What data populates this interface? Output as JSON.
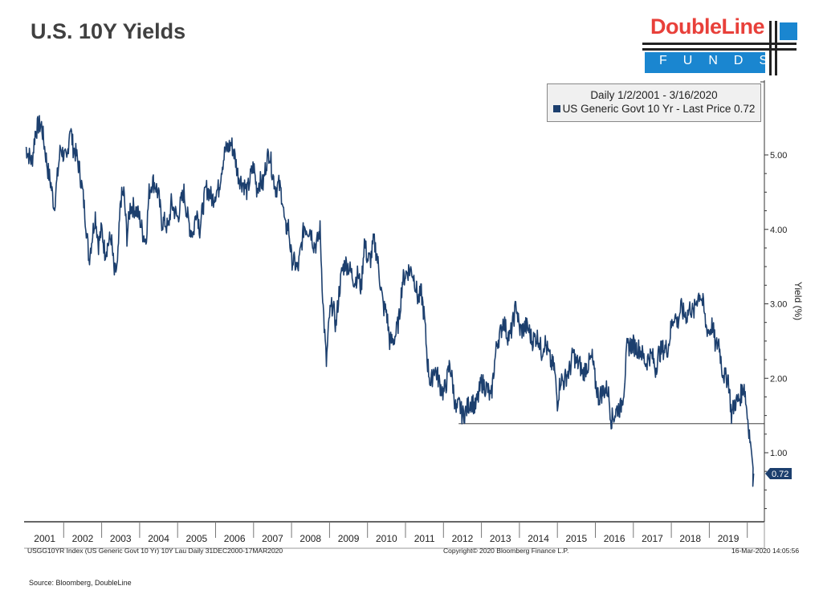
{
  "header": {
    "title": "U.S. 10Y Yields",
    "logo_text": "DoubleLine",
    "logo_sub": "FUNDS"
  },
  "legend": {
    "line1": "Daily 1/2/2001 - 3/16/2020",
    "line2": "US Generic Govt 10 Yr - Last Price 0.72"
  },
  "footer": {
    "left": "USGG10YR Index (US Generic Govt 10 Yr) 10Y Lau  Daily 31DEC2000-17MAR2020",
    "center": "Copyright© 2020 Bloomberg Finance L.P.",
    "right": "16-Mar-2020 14:05:56",
    "source": "Source: Bloomberg, DoubleLine"
  },
  "chart_data": {
    "type": "line",
    "title": "U.S. 10Y Yields",
    "ylabel": "Yield (%)",
    "ylim": [
      0.2,
      6.0
    ],
    "xlim": [
      2001.0,
      2020.3
    ],
    "yticks": [
      "5.00",
      "4.00",
      "3.00",
      "2.00",
      "1.00"
    ],
    "ytick_values": [
      5,
      4,
      3,
      2,
      1
    ],
    "xticks": [
      "2001",
      "2002",
      "2003",
      "2004",
      "2005",
      "2006",
      "2007",
      "2008",
      "2009",
      "2010",
      "2011",
      "2012",
      "2013",
      "2014",
      "2015",
      "2016",
      "2017",
      "2018",
      "2019"
    ],
    "series": [
      {
        "name": "US Generic Govt 10 Yr",
        "color": "#1c3f6e",
        "start": 2001.0,
        "step": "monthly",
        "last_value_label": "0.72",
        "values": [
          5.1,
          5.0,
          4.9,
          5.3,
          5.4,
          5.4,
          5.1,
          4.8,
          4.6,
          4.3,
          4.7,
          5.1,
          5.0,
          4.9,
          5.4,
          5.1,
          5.0,
          4.8,
          4.5,
          4.1,
          3.6,
          3.9,
          4.2,
          3.8,
          4.0,
          3.7,
          3.8,
          3.9,
          3.4,
          3.5,
          4.4,
          4.5,
          3.9,
          4.3,
          4.3,
          4.25,
          4.15,
          3.95,
          3.85,
          4.5,
          4.65,
          4.6,
          4.45,
          4.1,
          4.1,
          4.0,
          4.35,
          4.25,
          4.15,
          4.35,
          4.5,
          4.2,
          4.0,
          3.95,
          4.3,
          4.0,
          4.3,
          4.55,
          4.5,
          4.4,
          4.5,
          4.55,
          4.85,
          5.05,
          5.1,
          5.15,
          5.0,
          4.75,
          4.65,
          4.6,
          4.5,
          4.7,
          4.85,
          4.55,
          4.65,
          4.6,
          4.9,
          5.05,
          4.75,
          4.55,
          4.6,
          4.45,
          4.0,
          4.05,
          3.6,
          3.55,
          3.45,
          3.75,
          4.05,
          4.0,
          4.0,
          3.8,
          3.8,
          4.0,
          2.95,
          2.2,
          2.85,
          3.0,
          2.7,
          3.15,
          3.45,
          3.55,
          3.5,
          3.4,
          3.3,
          3.4,
          3.2,
          3.85,
          3.6,
          3.6,
          3.85,
          3.65,
          3.3,
          2.95,
          2.9,
          2.5,
          2.5,
          2.6,
          2.8,
          3.3,
          3.4,
          3.45,
          3.45,
          3.3,
          3.05,
          3.15,
          2.8,
          2.2,
          1.9,
          2.15,
          2.05,
          1.9,
          1.8,
          1.95,
          2.2,
          1.9,
          1.55,
          1.65,
          1.5,
          1.55,
          1.65,
          1.7,
          1.6,
          1.75,
          1.95,
          1.9,
          1.85,
          1.7,
          2.15,
          2.5,
          2.6,
          2.8,
          2.6,
          2.55,
          2.75,
          3.0,
          2.65,
          2.65,
          2.7,
          2.65,
          2.5,
          2.55,
          2.55,
          2.35,
          2.5,
          2.35,
          2.2,
          2.15,
          1.68,
          2.0,
          1.95,
          2.05,
          2.12,
          2.35,
          2.2,
          2.2,
          2.05,
          2.15,
          2.2,
          2.27,
          1.95,
          1.75,
          1.8,
          1.85,
          1.85,
          1.45,
          1.5,
          1.6,
          1.6,
          1.85,
          2.4,
          2.45,
          2.45,
          2.4,
          2.4,
          2.3,
          2.2,
          2.3,
          2.3,
          2.12,
          2.33,
          2.38,
          2.4,
          2.41,
          2.7,
          2.86,
          2.74,
          2.95,
          2.86,
          2.85,
          2.96,
          2.86,
          3.06,
          3.15,
          3.0,
          2.69,
          2.63,
          2.72,
          2.41,
          2.5,
          2.13,
          2.0,
          2.02,
          1.5,
          1.67,
          1.69,
          1.78,
          1.92,
          1.51,
          1.15,
          0.72
        ]
      }
    ],
    "annotations": [
      {
        "type": "hline",
        "y": 1.39,
        "x_from": 2012.4,
        "label": ""
      }
    ]
  }
}
